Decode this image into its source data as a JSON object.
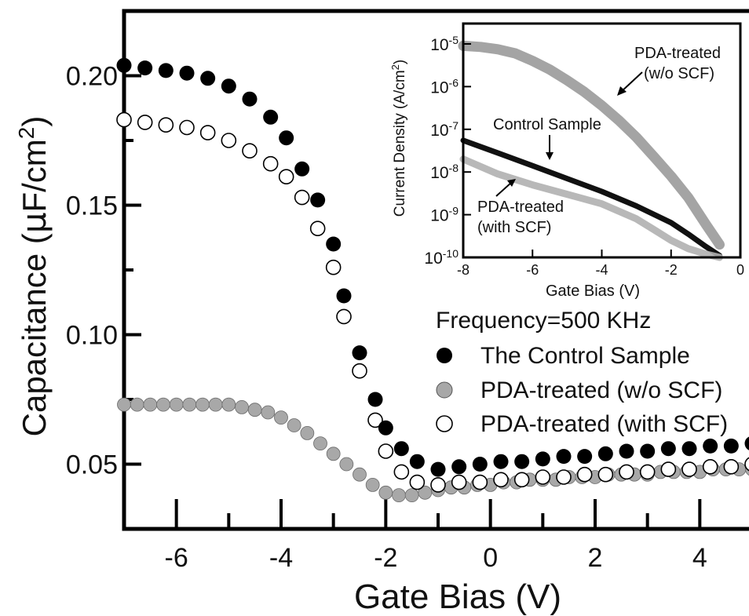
{
  "chart_data": [
    {
      "type": "scatter",
      "title": "",
      "xlabel": "Gate Bias (V)",
      "ylabel_main": "Capacitance (",
      "ylabel_mu": "μ",
      "ylabel_unit": "F/cm",
      "ylabel_exp": "2",
      "ylabel_close": ")",
      "xlim": [
        -7,
        5
      ],
      "ylim": [
        0.025,
        0.225
      ],
      "xticks": [
        -6,
        -4,
        -2,
        0,
        2,
        4
      ],
      "xtick_labels": [
        "-6",
        "-4",
        "-2",
        "0",
        "2",
        "4"
      ],
      "yticks": [
        0.05,
        0.1,
        0.15,
        0.2
      ],
      "ytick_labels": [
        "0.05",
        "0.10",
        "0.15",
        "0.20"
      ],
      "legend_title": "Frequency=500 KHz",
      "legend_position": "center-right",
      "series": [
        {
          "name": "The Control Sample",
          "marker": "filled",
          "color": "#000000",
          "x": [
            -7.0,
            -6.6,
            -6.2,
            -5.8,
            -5.4,
            -5.0,
            -4.6,
            -4.2,
            -3.9,
            -3.6,
            -3.3,
            -3.0,
            -2.8,
            -2.5,
            -2.2,
            -2.0,
            -1.7,
            -1.4,
            -1.0,
            -0.6,
            -0.2,
            0.2,
            0.6,
            1.0,
            1.4,
            1.8,
            2.2,
            2.6,
            3.0,
            3.4,
            3.8,
            4.2,
            4.6,
            5.0
          ],
          "y": [
            0.204,
            0.203,
            0.202,
            0.201,
            0.199,
            0.196,
            0.191,
            0.184,
            0.176,
            0.164,
            0.152,
            0.135,
            0.115,
            0.093,
            0.075,
            0.064,
            0.056,
            0.051,
            0.048,
            0.049,
            0.05,
            0.051,
            0.051,
            0.052,
            0.053,
            0.053,
            0.054,
            0.055,
            0.055,
            0.056,
            0.056,
            0.057,
            0.057,
            0.058
          ]
        },
        {
          "name": "PDA-treated (w/o SCF)",
          "marker": "gray",
          "color": "#a8a8a8",
          "x": [
            -7.0,
            -6.75,
            -6.5,
            -6.25,
            -6.0,
            -5.75,
            -5.5,
            -5.25,
            -5.0,
            -4.75,
            -4.5,
            -4.25,
            -4.0,
            -3.75,
            -3.5,
            -3.25,
            -3.0,
            -2.75,
            -2.5,
            -2.25,
            -2.0,
            -1.75,
            -1.5,
            -1.25,
            -1.0,
            -0.75,
            -0.5,
            -0.25,
            0.0,
            0.25,
            0.5,
            0.75,
            1.0,
            1.25,
            1.5,
            1.75,
            2.0,
            2.25,
            2.5,
            2.75,
            3.0,
            3.25,
            3.5,
            3.75,
            4.0,
            4.25,
            4.5,
            4.75,
            5.0
          ],
          "y": [
            0.073,
            0.073,
            0.073,
            0.073,
            0.073,
            0.073,
            0.073,
            0.073,
            0.073,
            0.072,
            0.071,
            0.07,
            0.068,
            0.065,
            0.062,
            0.058,
            0.054,
            0.05,
            0.046,
            0.042,
            0.039,
            0.038,
            0.038,
            0.039,
            0.04,
            0.041,
            0.041,
            0.042,
            0.042,
            0.043,
            0.043,
            0.044,
            0.044,
            0.044,
            0.045,
            0.045,
            0.045,
            0.046,
            0.046,
            0.046,
            0.046,
            0.047,
            0.047,
            0.047,
            0.047,
            0.048,
            0.048,
            0.048,
            0.048
          ]
        },
        {
          "name": "PDA-treated (with SCF)",
          "marker": "open",
          "color": "#000000",
          "x": [
            -7.0,
            -6.6,
            -6.2,
            -5.8,
            -5.4,
            -5.0,
            -4.6,
            -4.2,
            -3.9,
            -3.6,
            -3.3,
            -3.0,
            -2.8,
            -2.5,
            -2.2,
            -2.0,
            -1.7,
            -1.4,
            -1.0,
            -0.6,
            -0.2,
            0.2,
            0.6,
            1.0,
            1.4,
            1.8,
            2.2,
            2.6,
            3.0,
            3.4,
            3.8,
            4.2,
            4.6,
            5.0
          ],
          "y": [
            0.183,
            0.182,
            0.181,
            0.18,
            0.178,
            0.175,
            0.171,
            0.166,
            0.161,
            0.153,
            0.141,
            0.126,
            0.107,
            0.086,
            0.067,
            0.055,
            0.047,
            0.043,
            0.042,
            0.043,
            0.043,
            0.044,
            0.044,
            0.045,
            0.045,
            0.046,
            0.046,
            0.047,
            0.047,
            0.048,
            0.048,
            0.049,
            0.049,
            0.05
          ]
        }
      ]
    },
    {
      "type": "line",
      "title": "",
      "xlabel": "Gate Bias (V)",
      "ylabel": "Current Density (A/cm",
      "ylabel_exp": "2",
      "ylabel_close": ")",
      "yscale": "log",
      "xlim": [
        -8,
        0
      ],
      "ylim": [
        1e-10,
        3e-05
      ],
      "xticks": [
        -8,
        -6,
        -4,
        -2,
        0
      ],
      "xtick_labels": [
        "-8",
        "-6",
        "-4",
        "-2",
        "0"
      ],
      "yticks": [
        1e-10,
        1e-09,
        1e-08,
        1e-07,
        1e-06,
        1e-05
      ],
      "ytick_labels": [
        {
          "base": "10",
          "exp": "-10"
        },
        {
          "base": "10",
          "exp": "-9"
        },
        {
          "base": "10",
          "exp": "-8"
        },
        {
          "base": "10",
          "exp": "-7"
        },
        {
          "base": "10",
          "exp": "-6"
        },
        {
          "base": "10",
          "exp": "-5"
        }
      ],
      "annotations": [
        {
          "text_lines": [
            "PDA-treated",
            "(w/o SCF)"
          ]
        },
        {
          "text_lines": [
            "Control Sample"
          ]
        },
        {
          "text_lines": [
            "PDA-treated",
            "(with SCF)"
          ]
        }
      ],
      "series": [
        {
          "color": "#9a9a9a",
          "x": [
            -8.0,
            -7.5,
            -7.0,
            -6.5,
            -6.0,
            -5.5,
            -5.0,
            -4.5,
            -4.0,
            -3.5,
            -3.0,
            -2.5,
            -2.0,
            -1.5,
            -1.0,
            -0.6
          ],
          "y": [
            9e-06,
            8.5e-06,
            7.5e-06,
            6e-06,
            4e-06,
            2.5e-06,
            1.4e-06,
            7.5e-07,
            3.6e-07,
            1.6e-07,
            6.5e-08,
            2.3e-08,
            8e-09,
            2.5e-09,
            6e-10,
            2e-10
          ]
        },
        {
          "color": "#111111",
          "x": [
            -8.0,
            -7.0,
            -6.0,
            -5.0,
            -4.0,
            -3.0,
            -2.0,
            -1.5,
            -1.0,
            -0.6
          ],
          "y": [
            5.5e-08,
            2.8e-08,
            1.4e-08,
            7e-09,
            3.5e-09,
            1.6e-09,
            6.5e-10,
            3.5e-10,
            1.8e-10,
            1.1e-10
          ]
        },
        {
          "color": "#b0b0b0",
          "x": [
            -8.0,
            -7.0,
            -6.0,
            -5.0,
            -4.0,
            -3.0,
            -2.5,
            -2.0,
            -1.5,
            -1.0,
            -0.6
          ],
          "y": [
            2e-08,
            9e-09,
            5e-09,
            3e-09,
            1.8e-09,
            8e-10,
            4.5e-10,
            2.5e-10,
            1.6e-10,
            1.2e-10,
            1e-10
          ]
        }
      ]
    }
  ]
}
